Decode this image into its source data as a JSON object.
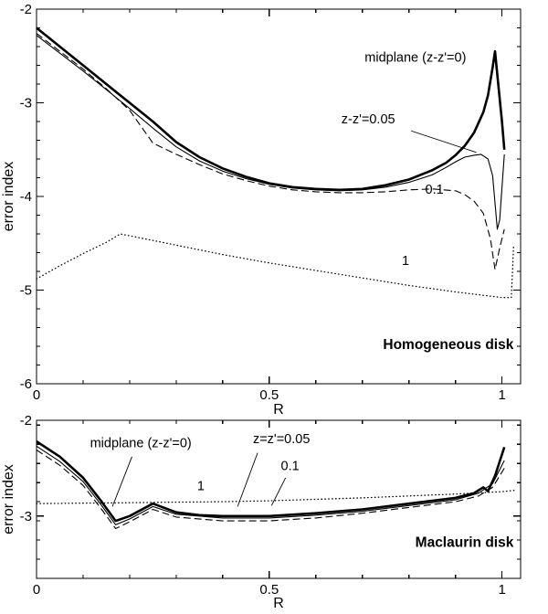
{
  "figure": {
    "background": "#ffffff",
    "line_color": "#000000"
  },
  "chart_data": [
    {
      "type": "line",
      "panel": "top",
      "panel_label": "Homogeneous disk",
      "xlabel": "R",
      "ylabel": "error index",
      "xlim": [
        0,
        1.04
      ],
      "ylim": [
        -6,
        -2
      ],
      "xticks": [
        {
          "v": 0,
          "label": "0"
        },
        {
          "v": 0.5,
          "label": "0.5"
        },
        {
          "v": 1,
          "label": "1"
        }
      ],
      "yticks": [
        {
          "v": -2,
          "label": "-2"
        },
        {
          "v": -3,
          "label": "-3"
        },
        {
          "v": -4,
          "label": "-4"
        },
        {
          "v": -5,
          "label": "-5"
        },
        {
          "v": -6,
          "label": "-6"
        }
      ],
      "x_minor_step": 0.1,
      "y_minor_step": 0.2,
      "grid": false,
      "annotations": [
        {
          "text": "midplane (z-z'=0)",
          "x": 0.705,
          "y": -2.56
        },
        {
          "text": "z-z'=0.05",
          "x": 0.655,
          "y": -3.22,
          "leader": [
            0.805,
            -3.3,
            0.945,
            -3.53
          ]
        },
        {
          "text": "0.1",
          "x": 0.835,
          "y": -3.97
        },
        {
          "text": "1",
          "x": 0.785,
          "y": -4.73
        },
        {
          "text": "Homogeneous disk",
          "x": 1.025,
          "y": -5.63,
          "anchor": "end",
          "bold": true
        }
      ],
      "series": [
        {
          "id": "midplane",
          "name": "midplane (z-z'=0)",
          "style": "solid",
          "width": 2.6,
          "points": [
            [
              0,
              -2.2
            ],
            [
              0.05,
              -2.4
            ],
            [
              0.1,
              -2.6
            ],
            [
              0.15,
              -2.8
            ],
            [
              0.2,
              -3.0
            ],
            [
              0.25,
              -3.2
            ],
            [
              0.3,
              -3.42
            ],
            [
              0.35,
              -3.58
            ],
            [
              0.4,
              -3.7
            ],
            [
              0.45,
              -3.79
            ],
            [
              0.5,
              -3.86
            ],
            [
              0.55,
              -3.9
            ],
            [
              0.6,
              -3.92
            ],
            [
              0.65,
              -3.93
            ],
            [
              0.7,
              -3.92
            ],
            [
              0.75,
              -3.88
            ],
            [
              0.8,
              -3.82
            ],
            [
              0.85,
              -3.72
            ],
            [
              0.88,
              -3.64
            ],
            [
              0.9,
              -3.56
            ],
            [
              0.92,
              -3.46
            ],
            [
              0.94,
              -3.32
            ],
            [
              0.96,
              -3.1
            ],
            [
              0.97,
              -2.92
            ],
            [
              0.98,
              -2.62
            ],
            [
              0.985,
              -2.45
            ],
            [
              0.99,
              -2.7
            ],
            [
              1.0,
              -3.2
            ],
            [
              1.005,
              -3.5
            ]
          ]
        },
        {
          "id": "z005",
          "name": "z-z'=0.05",
          "style": "solid",
          "width": 1.1,
          "points": [
            [
              0,
              -2.28
            ],
            [
              0.05,
              -2.47
            ],
            [
              0.1,
              -2.66
            ],
            [
              0.15,
              -2.86
            ],
            [
              0.2,
              -3.06
            ],
            [
              0.25,
              -3.27
            ],
            [
              0.3,
              -3.47
            ],
            [
              0.35,
              -3.62
            ],
            [
              0.4,
              -3.73
            ],
            [
              0.45,
              -3.81
            ],
            [
              0.5,
              -3.87
            ],
            [
              0.55,
              -3.91
            ],
            [
              0.6,
              -3.93
            ],
            [
              0.65,
              -3.94
            ],
            [
              0.7,
              -3.93
            ],
            [
              0.75,
              -3.9
            ],
            [
              0.8,
              -3.85
            ],
            [
              0.85,
              -3.77
            ],
            [
              0.88,
              -3.69
            ],
            [
              0.9,
              -3.63
            ],
            [
              0.92,
              -3.58
            ],
            [
              0.94,
              -3.56
            ],
            [
              0.955,
              -3.55
            ],
            [
              0.97,
              -3.6
            ],
            [
              0.98,
              -3.78
            ],
            [
              0.99,
              -4.35
            ],
            [
              0.995,
              -4.25
            ],
            [
              1.005,
              -3.55
            ]
          ]
        },
        {
          "id": "z01",
          "name": "0.1",
          "style": "dashed",
          "width": 1.1,
          "points": [
            [
              0,
              -2.26
            ],
            [
              0.05,
              -2.45
            ],
            [
              0.1,
              -2.64
            ],
            [
              0.15,
              -2.85
            ],
            [
              0.2,
              -3.08
            ],
            [
              0.25,
              -3.43
            ],
            [
              0.3,
              -3.55
            ],
            [
              0.35,
              -3.66
            ],
            [
              0.4,
              -3.76
            ],
            [
              0.45,
              -3.83
            ],
            [
              0.5,
              -3.89
            ],
            [
              0.55,
              -3.93
            ],
            [
              0.6,
              -3.95
            ],
            [
              0.65,
              -3.96
            ],
            [
              0.7,
              -3.96
            ],
            [
              0.75,
              -3.95
            ],
            [
              0.8,
              -3.93
            ],
            [
              0.85,
              -3.92
            ],
            [
              0.9,
              -3.94
            ],
            [
              0.92,
              -3.98
            ],
            [
              0.94,
              -4.05
            ],
            [
              0.96,
              -4.18
            ],
            [
              0.975,
              -4.45
            ],
            [
              0.985,
              -4.78
            ],
            [
              0.995,
              -4.55
            ],
            [
              1.005,
              -4.35
            ]
          ]
        },
        {
          "id": "z1",
          "name": "1",
          "style": "dotted",
          "width": 1.3,
          "points": [
            [
              0,
              -4.88
            ],
            [
              0.05,
              -4.74
            ],
            [
              0.1,
              -4.61
            ],
            [
              0.15,
              -4.49
            ],
            [
              0.18,
              -4.4
            ],
            [
              0.22,
              -4.44
            ],
            [
              0.3,
              -4.52
            ],
            [
              0.4,
              -4.62
            ],
            [
              0.5,
              -4.71
            ],
            [
              0.6,
              -4.79
            ],
            [
              0.7,
              -4.87
            ],
            [
              0.8,
              -4.95
            ],
            [
              0.9,
              -5.02
            ],
            [
              0.95,
              -5.05
            ],
            [
              1.0,
              -5.08
            ],
            [
              1.02,
              -5.08
            ],
            [
              1.025,
              -4.52
            ]
          ]
        }
      ]
    },
    {
      "type": "line",
      "panel": "bottom",
      "panel_label": "Maclaurin disk",
      "xlabel": "R",
      "ylabel": "error index",
      "xlim": [
        0,
        1.04
      ],
      "ylim": [
        -3.65,
        -2
      ],
      "xticks": [
        {
          "v": 0,
          "label": "0"
        },
        {
          "v": 0.5,
          "label": "0.5"
        },
        {
          "v": 1,
          "label": "1"
        }
      ],
      "yticks": [
        {
          "v": -2,
          "label": "-2"
        },
        {
          "v": -3,
          "label": "-3"
        }
      ],
      "x_minor_step": 0.1,
      "y_minor_step": 0.2,
      "grid": false,
      "annotations": [
        {
          "text": "midplane (z-z'=0)",
          "x": 0.115,
          "y": -2.28,
          "leader": [
            0.205,
            -2.38,
            0.163,
            -2.9
          ]
        },
        {
          "text": "z=z'=0.05",
          "x": 0.465,
          "y": -2.24,
          "leader": [
            0.475,
            -2.34,
            0.432,
            -2.9
          ]
        },
        {
          "text": "0.1",
          "x": 0.525,
          "y": -2.52,
          "leader": [
            0.535,
            -2.6,
            0.505,
            -2.89
          ]
        },
        {
          "text": "1",
          "x": 0.345,
          "y": -2.73
        },
        {
          "text": "Maclaurin disk",
          "x": 1.025,
          "y": -3.32,
          "anchor": "end",
          "bold": true
        }
      ],
      "series": [
        {
          "id": "midplane",
          "name": "midplane (z-z'=0)",
          "style": "solid",
          "width": 2.6,
          "points": [
            [
              0,
              -2.22
            ],
            [
              0.05,
              -2.38
            ],
            [
              0.1,
              -2.6
            ],
            [
              0.14,
              -2.85
            ],
            [
              0.17,
              -3.05
            ],
            [
              0.2,
              -3.0
            ],
            [
              0.25,
              -2.87
            ],
            [
              0.3,
              -2.96
            ],
            [
              0.35,
              -2.99
            ],
            [
              0.4,
              -3.0
            ],
            [
              0.5,
              -3.0
            ],
            [
              0.6,
              -2.97
            ],
            [
              0.7,
              -2.93
            ],
            [
              0.8,
              -2.87
            ],
            [
              0.9,
              -2.81
            ],
            [
              0.94,
              -2.76
            ],
            [
              0.96,
              -2.7
            ],
            [
              0.97,
              -2.74
            ],
            [
              0.985,
              -2.58
            ],
            [
              1.005,
              -2.28
            ]
          ]
        },
        {
          "id": "z005",
          "name": "z=z'=0.05",
          "style": "solid",
          "width": 1.1,
          "points": [
            [
              0,
              -2.27
            ],
            [
              0.05,
              -2.43
            ],
            [
              0.1,
              -2.64
            ],
            [
              0.14,
              -2.89
            ],
            [
              0.17,
              -3.09
            ],
            [
              0.2,
              -3.03
            ],
            [
              0.25,
              -2.9
            ],
            [
              0.3,
              -2.98
            ],
            [
              0.4,
              -3.02
            ],
            [
              0.5,
              -3.02
            ],
            [
              0.6,
              -2.99
            ],
            [
              0.7,
              -2.95
            ],
            [
              0.8,
              -2.89
            ],
            [
              0.9,
              -2.83
            ],
            [
              0.95,
              -2.76
            ],
            [
              0.98,
              -2.66
            ],
            [
              1.005,
              -2.42
            ]
          ]
        },
        {
          "id": "z01",
          "name": "0.1",
          "style": "dashed",
          "width": 1.1,
          "points": [
            [
              0,
              -2.31
            ],
            [
              0.05,
              -2.47
            ],
            [
              0.1,
              -2.68
            ],
            [
              0.14,
              -2.93
            ],
            [
              0.17,
              -3.13
            ],
            [
              0.2,
              -3.06
            ],
            [
              0.25,
              -2.93
            ],
            [
              0.3,
              -3.01
            ],
            [
              0.4,
              -3.05
            ],
            [
              0.5,
              -3.05
            ],
            [
              0.6,
              -3.02
            ],
            [
              0.7,
              -2.97
            ],
            [
              0.8,
              -2.91
            ],
            [
              0.9,
              -2.85
            ],
            [
              0.95,
              -2.79
            ],
            [
              0.98,
              -2.7
            ],
            [
              1.005,
              -2.5
            ]
          ]
        },
        {
          "id": "z1",
          "name": "1",
          "style": "dotted",
          "width": 1.3,
          "points": [
            [
              0,
              -2.87
            ],
            [
              0.1,
              -2.865
            ],
            [
              0.2,
              -2.86
            ],
            [
              0.3,
              -2.855
            ],
            [
              0.4,
              -2.85
            ],
            [
              0.5,
              -2.84
            ],
            [
              0.6,
              -2.825
            ],
            [
              0.7,
              -2.81
            ],
            [
              0.8,
              -2.79
            ],
            [
              0.9,
              -2.77
            ],
            [
              1.0,
              -2.745
            ],
            [
              1.03,
              -2.73
            ]
          ]
        }
      ]
    }
  ]
}
